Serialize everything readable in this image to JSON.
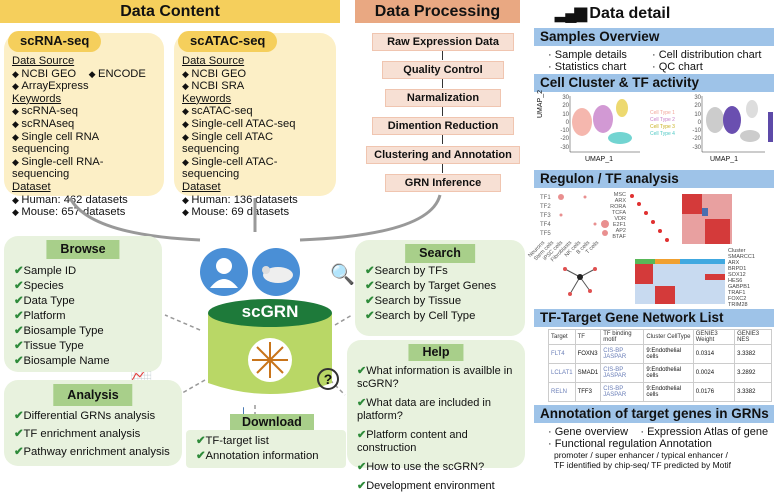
{
  "data_content": {
    "title": "Data Content",
    "scrna": {
      "tag": "scRNA-seq",
      "source_label": "Data Source",
      "sources": [
        "NCBI GEO",
        "ENCODE",
        "ArrayExpress"
      ],
      "keywords_label": "Keywords",
      "keywords": [
        "scRNA-seq",
        "scRNAseq",
        "Single cell RNA sequencing",
        "Single-cell RNA-sequencing"
      ],
      "dataset_label": "Dataset",
      "datasets": [
        "Human: 462 datasets",
        "Mouse: 657 datasets"
      ]
    },
    "scatac": {
      "tag": "scATAC-seq",
      "source_label": "Data Source",
      "sources": [
        "NCBI GEO",
        "NCBI SRA"
      ],
      "keywords_label": "Keywords",
      "keywords": [
        "scATAC-seq",
        "Single-cell ATAC-seq",
        "Single cell ATAC sequencing",
        "Single-cell ATAC-sequencing"
      ],
      "dataset_label": "Dataset",
      "datasets": [
        "Human: 136 datasets",
        "Mouse: 69 datasets"
      ]
    }
  },
  "data_processing": {
    "title": "Data Processing",
    "steps": [
      "Raw Expression Data",
      "Quality Control",
      "Narmalization",
      "Dimention Reduction",
      "Clustering and Annotation",
      "GRN Inference"
    ]
  },
  "center": {
    "db_label": "scGRN"
  },
  "browse": {
    "title": "Browse",
    "items": [
      "Sample ID",
      "Species",
      "Data Type",
      "Platform",
      "Biosample Type",
      "Tissue Type",
      "Biosample Name"
    ]
  },
  "analysis": {
    "title": "Analysis",
    "items": [
      "Differential GRNs analysis",
      "TF enrichment analysis",
      "Pathway enrichment analysis"
    ]
  },
  "download": {
    "title": "Download",
    "items": [
      "TF-target list",
      "Annotation information"
    ]
  },
  "search": {
    "title": "Search",
    "items": [
      "Search by TFs",
      "Search by Target Genes",
      "Search by Tissue",
      "Search by Cell Type"
    ]
  },
  "help": {
    "title": "Help",
    "items": [
      "What information is availble in scGRN?",
      "What data are included in platform?",
      "Platform content and construction",
      "How to use the scGRN?",
      "Development environment"
    ]
  },
  "data_detail": {
    "title": "Data detail",
    "samples": {
      "title": "Samples Overview",
      "items": [
        "Sample details",
        "Cell distribution chart",
        "Statistics chart",
        "QC chart"
      ]
    },
    "cluster": {
      "title": "Cell Cluster & TF activity",
      "xlabel": "UMAP_1",
      "ylabel": "UMAP_2",
      "legend": [
        "Cell Type 1",
        "Cell Type 2",
        "Cell Type 3",
        "Cell Type 4"
      ],
      "ticks": [
        "30",
        "20",
        "10",
        "0",
        "-10",
        "-20",
        "-30"
      ]
    },
    "regulon": {
      "title": "Regulon / TF analysis",
      "tfs": [
        "TF1",
        "TF2",
        "TF3",
        "TF4",
        "TF5"
      ],
      "cells": [
        "Neurons",
        "Stem cells",
        "iPSC cells",
        "Fibroblasts",
        "NK cells",
        "B cells",
        "T cells"
      ],
      "regulons": [
        "MSC",
        "ARX",
        "RORA",
        "TCFA",
        "VDR",
        "E2F1",
        "AP2",
        "BTAF"
      ],
      "heat_genes": [
        "Cluster",
        "SMARCC1",
        "ARX",
        "BRPD1",
        "SOX12",
        "HES6",
        "GABPB1",
        "TRAF1",
        "FOXC2",
        "TRIM28"
      ]
    },
    "network": {
      "title": "TF-Target Gene Network List",
      "headers": [
        "Target",
        "TF",
        "TF binding motif",
        "Cluster CellType",
        "GENIE3 Weight",
        "GENIE3 NES"
      ],
      "rows": [
        {
          "target": "FLT4",
          "tf": "FOXN3",
          "motif": "CIS-BP JASPAR",
          "cell": "9:Endothelial cells",
          "weight": "0.0314",
          "nes": "3.3382"
        },
        {
          "target": "LCLAT1",
          "tf": "SMAD1",
          "motif": "CIS-BP JASPAR",
          "cell": "9:Endothelial cells",
          "weight": "0.0024",
          "nes": "3.2892"
        },
        {
          "target": "RELN",
          "tf": "TFF3",
          "motif": "CIS-BP JASPAR",
          "cell": "9:Endothelial cells",
          "weight": "0.0176",
          "nes": "3.3382"
        }
      ]
    },
    "annotation": {
      "title": "Annotation of target genes in GRNs",
      "items": [
        "Gene overview",
        "Expression Atlas of gene",
        "Functional regulation Annotation"
      ],
      "sub1": "promoter / super enhancer / typical enhancer /",
      "sub2": "TF identified by chip-seq/ TF predicted by Motif"
    }
  },
  "colors": {
    "yellow": "#f5cf5c",
    "orange": "#e9a882",
    "green": "#a8cf8a",
    "blue": "#9ec3e8"
  }
}
